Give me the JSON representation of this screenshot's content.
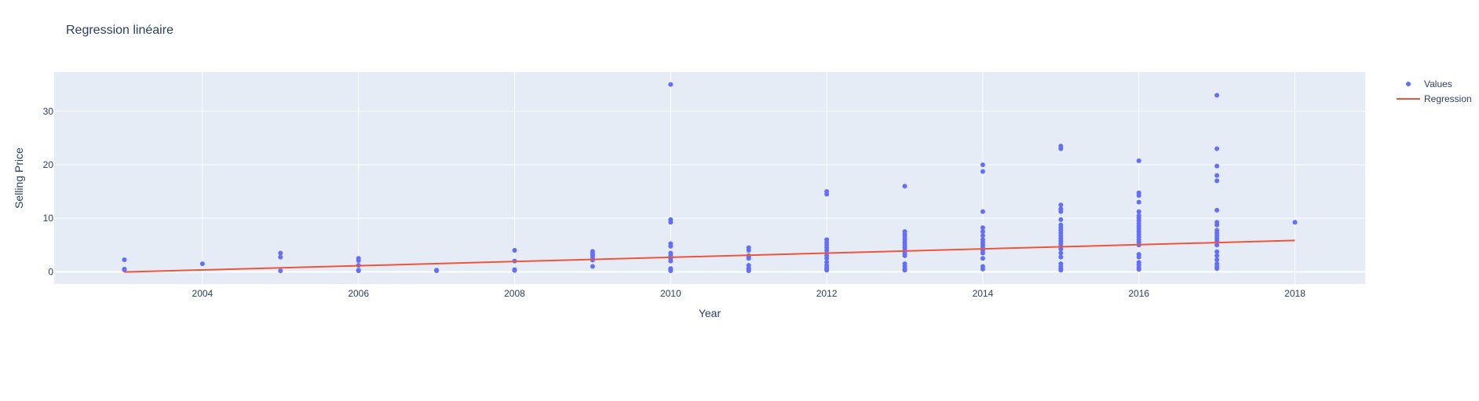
{
  "chart_data": {
    "type": "scatter",
    "title": "Regression linéaire",
    "xlabel": "Year",
    "ylabel": "Selling Price",
    "xlim": [
      2002.1,
      2018.9
    ],
    "ylim": [
      -2.3,
      37.3
    ],
    "x_ticks": [
      2004,
      2006,
      2008,
      2010,
      2012,
      2014,
      2016,
      2018
    ],
    "y_ticks": [
      0,
      10,
      20,
      30
    ],
    "grid": true,
    "legend_position": "top-right",
    "plot_background": "#e5ecf6",
    "series": [
      {
        "name": "Values",
        "mode": "markers",
        "color": "#636efa",
        "points": [
          [
            2003,
            2.25
          ],
          [
            2003,
            0.35
          ],
          [
            2003,
            0.5
          ],
          [
            2004,
            1.5
          ],
          [
            2005,
            3.5
          ],
          [
            2005,
            2.75
          ],
          [
            2005,
            0.2
          ],
          [
            2006,
            2.5
          ],
          [
            2006,
            2.1
          ],
          [
            2006,
            1.2
          ],
          [
            2006,
            0.2
          ],
          [
            2006,
            0.3
          ],
          [
            2007,
            0.2
          ],
          [
            2007,
            0.3
          ],
          [
            2008,
            4.0
          ],
          [
            2008,
            2.0
          ],
          [
            2008,
            0.25
          ],
          [
            2008,
            0.4
          ],
          [
            2009,
            3.8
          ],
          [
            2009,
            3.5
          ],
          [
            2009,
            3.2
          ],
          [
            2009,
            2.9
          ],
          [
            2009,
            2.5
          ],
          [
            2009,
            2.2
          ],
          [
            2009,
            1.0
          ],
          [
            2010,
            35.0
          ],
          [
            2010,
            9.75
          ],
          [
            2010,
            9.25
          ],
          [
            2010,
            5.25
          ],
          [
            2010,
            4.75
          ],
          [
            2010,
            3.5
          ],
          [
            2010,
            3.0
          ],
          [
            2010,
            2.5
          ],
          [
            2010,
            2.0
          ],
          [
            2010,
            0.6
          ],
          [
            2010,
            0.4
          ],
          [
            2010,
            0.25
          ],
          [
            2010,
            0.2
          ],
          [
            2011,
            4.5
          ],
          [
            2011,
            4.0
          ],
          [
            2011,
            3.0
          ],
          [
            2011,
            2.75
          ],
          [
            2011,
            2.5
          ],
          [
            2011,
            1.2
          ],
          [
            2011,
            0.6
          ],
          [
            2011,
            0.35
          ],
          [
            2011,
            0.2
          ],
          [
            2012,
            15.0
          ],
          [
            2012,
            14.5
          ],
          [
            2012,
            6.0
          ],
          [
            2012,
            5.5
          ],
          [
            2012,
            5.0
          ],
          [
            2012,
            4.5
          ],
          [
            2012,
            4.0
          ],
          [
            2012,
            3.5
          ],
          [
            2012,
            3.0
          ],
          [
            2012,
            2.5
          ],
          [
            2012,
            1.8
          ],
          [
            2012,
            1.2
          ],
          [
            2012,
            0.8
          ],
          [
            2012,
            0.5
          ],
          [
            2012,
            0.3
          ],
          [
            2013,
            16.0
          ],
          [
            2013,
            7.5
          ],
          [
            2013,
            7.0
          ],
          [
            2013,
            6.5
          ],
          [
            2013,
            6.0
          ],
          [
            2013,
            5.5
          ],
          [
            2013,
            5.0
          ],
          [
            2013,
            4.5
          ],
          [
            2013,
            4.0
          ],
          [
            2013,
            3.5
          ],
          [
            2013,
            3.0
          ],
          [
            2013,
            1.5
          ],
          [
            2013,
            1.0
          ],
          [
            2013,
            0.5
          ],
          [
            2013,
            0.3
          ],
          [
            2014,
            20.0
          ],
          [
            2014,
            18.75
          ],
          [
            2014,
            11.25
          ],
          [
            2014,
            8.25
          ],
          [
            2014,
            7.5
          ],
          [
            2014,
            6.75
          ],
          [
            2014,
            6.0
          ],
          [
            2014,
            5.5
          ],
          [
            2014,
            5.0
          ],
          [
            2014,
            4.5
          ],
          [
            2014,
            4.0
          ],
          [
            2014,
            3.5
          ],
          [
            2014,
            2.5
          ],
          [
            2014,
            1.0
          ],
          [
            2014,
            0.5
          ],
          [
            2015,
            23.5
          ],
          [
            2015,
            23.0
          ],
          [
            2015,
            12.5
          ],
          [
            2015,
            11.75
          ],
          [
            2015,
            11.25
          ],
          [
            2015,
            9.75
          ],
          [
            2015,
            8.75
          ],
          [
            2015,
            8.25
          ],
          [
            2015,
            7.75
          ],
          [
            2015,
            7.25
          ],
          [
            2015,
            6.75
          ],
          [
            2015,
            6.25
          ],
          [
            2015,
            5.75
          ],
          [
            2015,
            5.25
          ],
          [
            2015,
            4.75
          ],
          [
            2015,
            4.25
          ],
          [
            2015,
            3.5
          ],
          [
            2015,
            2.75
          ],
          [
            2015,
            1.5
          ],
          [
            2015,
            1.0
          ],
          [
            2015,
            0.6
          ],
          [
            2015,
            0.3
          ],
          [
            2016,
            20.75
          ],
          [
            2016,
            14.75
          ],
          [
            2016,
            14.25
          ],
          [
            2016,
            13.0
          ],
          [
            2016,
            11.25
          ],
          [
            2016,
            10.5
          ],
          [
            2016,
            10.0
          ],
          [
            2016,
            9.5
          ],
          [
            2016,
            9.0
          ],
          [
            2016,
            8.5
          ],
          [
            2016,
            8.0
          ],
          [
            2016,
            7.5
          ],
          [
            2016,
            7.0
          ],
          [
            2016,
            6.5
          ],
          [
            2016,
            6.0
          ],
          [
            2016,
            5.5
          ],
          [
            2016,
            5.0
          ],
          [
            2016,
            3.25
          ],
          [
            2016,
            2.75
          ],
          [
            2016,
            1.75
          ],
          [
            2016,
            1.25
          ],
          [
            2016,
            0.75
          ],
          [
            2016,
            0.45
          ],
          [
            2017,
            33.0
          ],
          [
            2017,
            23.0
          ],
          [
            2017,
            19.75
          ],
          [
            2017,
            18.0
          ],
          [
            2017,
            17.0
          ],
          [
            2017,
            11.5
          ],
          [
            2017,
            9.25
          ],
          [
            2017,
            8.75
          ],
          [
            2017,
            7.75
          ],
          [
            2017,
            7.25
          ],
          [
            2017,
            6.75
          ],
          [
            2017,
            6.25
          ],
          [
            2017,
            5.75
          ],
          [
            2017,
            5.0
          ],
          [
            2017,
            3.75
          ],
          [
            2017,
            3.0
          ],
          [
            2017,
            2.25
          ],
          [
            2017,
            1.5
          ],
          [
            2017,
            1.0
          ],
          [
            2017,
            0.6
          ],
          [
            2018,
            9.25
          ]
        ]
      },
      {
        "name": "Regression",
        "mode": "line",
        "color": "#ef553b",
        "points": [
          [
            2003,
            -0.05
          ],
          [
            2018,
            5.85
          ]
        ]
      }
    ]
  }
}
